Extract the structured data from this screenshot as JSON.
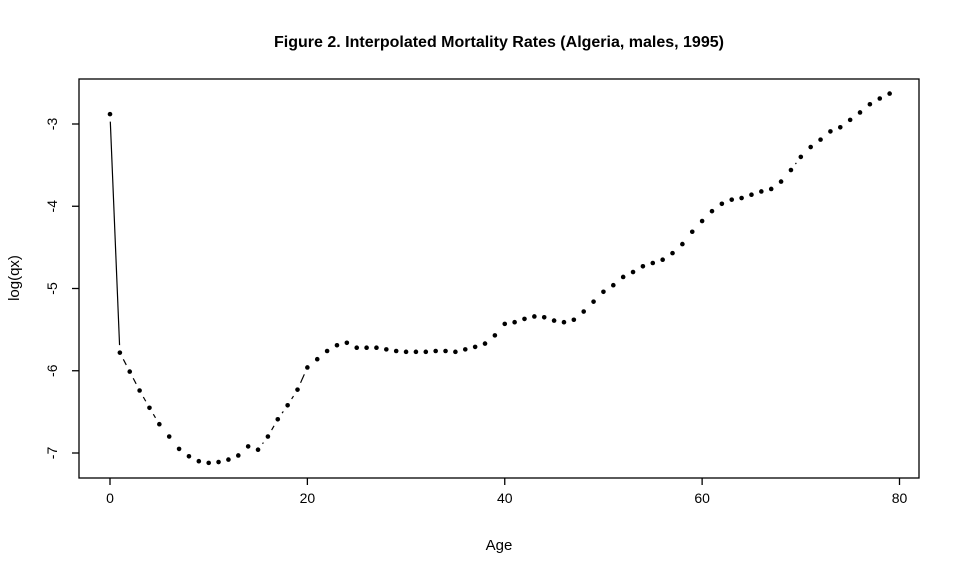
{
  "chart_data": {
    "type": "scatter",
    "style": "points-connected-with-gapped-segments (R type='b')",
    "title": "Figure 2. Interpolated Mortality Rates (Algeria, males, 1995)",
    "xlabel": "Age",
    "ylabel": "log(qx)",
    "x_ticks": [
      0,
      20,
      40,
      60,
      80
    ],
    "y_ticks": [
      -3,
      -4,
      -5,
      -6,
      -7
    ],
    "xlim": [
      -3.1,
      82
    ],
    "ylim": [
      -7.3,
      -2.45
    ],
    "grid": false,
    "legend": "none",
    "point_color": "#000000",
    "line_color": "#000000",
    "background_color": "#ffffff",
    "x": [
      0,
      1,
      2,
      3,
      4,
      5,
      6,
      7,
      8,
      9,
      10,
      11,
      12,
      13,
      14,
      15,
      16,
      17,
      18,
      19,
      20,
      21,
      22,
      23,
      24,
      25,
      26,
      27,
      28,
      29,
      30,
      31,
      32,
      33,
      34,
      35,
      36,
      37,
      38,
      39,
      40,
      41,
      42,
      43,
      44,
      45,
      46,
      47,
      48,
      49,
      50,
      51,
      52,
      53,
      54,
      55,
      56,
      57,
      58,
      59,
      60,
      61,
      62,
      63,
      64,
      65,
      66,
      67,
      68,
      69,
      70,
      71,
      72,
      73,
      74,
      75,
      76,
      77,
      78,
      79
    ],
    "y": [
      -2.88,
      -5.78,
      -6.01,
      -6.24,
      -6.45,
      -6.65,
      -6.8,
      -6.95,
      -7.04,
      -7.1,
      -7.12,
      -7.11,
      -7.08,
      -7.03,
      -6.92,
      -6.96,
      -6.8,
      -6.59,
      -6.42,
      -6.23,
      -5.96,
      -5.86,
      -5.76,
      -5.69,
      -5.66,
      -5.72,
      -5.72,
      -5.72,
      -5.74,
      -5.76,
      -5.77,
      -5.77,
      -5.77,
      -5.76,
      -5.76,
      -5.77,
      -5.74,
      -5.71,
      -5.67,
      -5.57,
      -5.43,
      -5.41,
      -5.37,
      -5.34,
      -5.35,
      -5.39,
      -5.41,
      -5.38,
      -5.28,
      -5.16,
      -5.04,
      -4.96,
      -4.86,
      -4.8,
      -4.73,
      -4.69,
      -4.65,
      -4.57,
      -4.46,
      -4.31,
      -4.18,
      -4.06,
      -3.97,
      -3.92,
      -3.9,
      -3.86,
      -3.82,
      -3.79,
      -3.7,
      -3.56,
      -3.4,
      -3.28,
      -3.19,
      -3.09,
      -3.04,
      -2.95,
      -2.86,
      -2.76,
      -2.69,
      -2.63
    ]
  }
}
